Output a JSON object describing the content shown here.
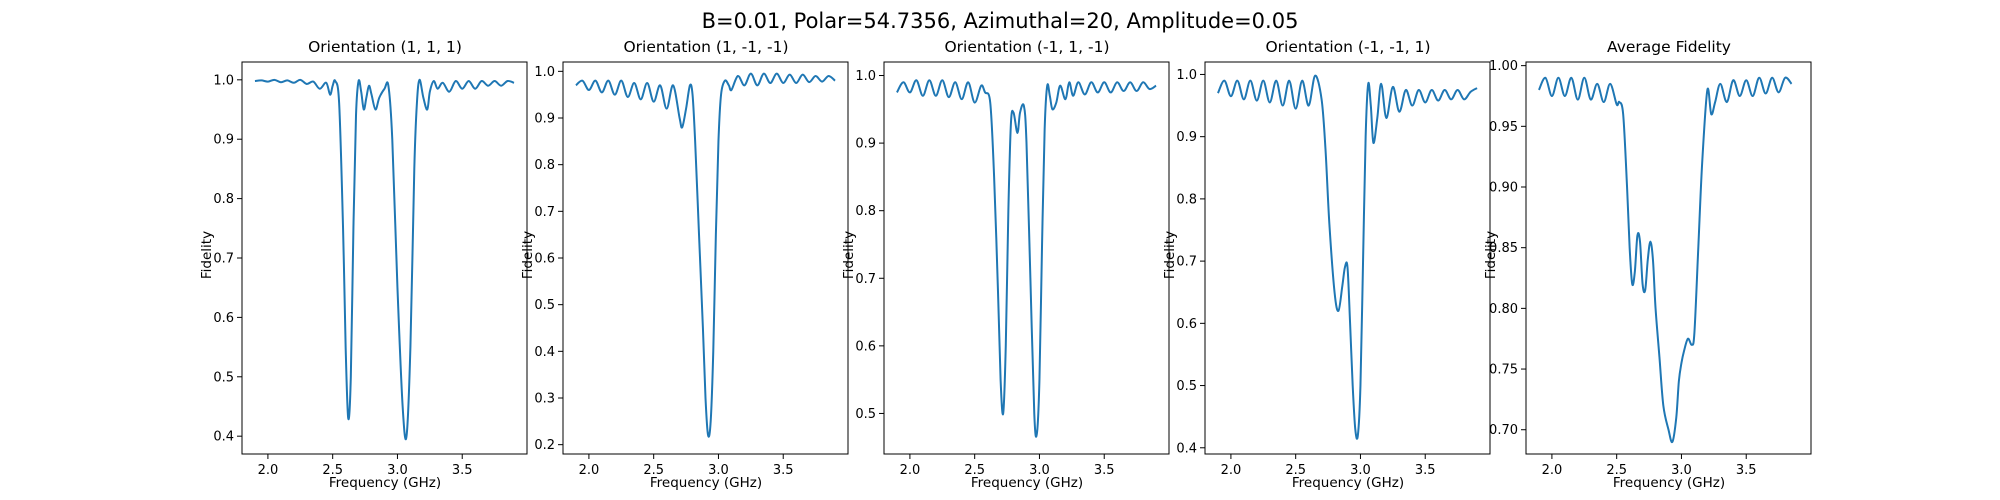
{
  "figure": {
    "title": "B=0.01, Polar=54.7356, Azimuthal=20, Amplitude=0.05",
    "line_color": "#1f77b4"
  },
  "chart_data": [
    {
      "type": "line",
      "title": "Orientation (1, 1, 1)",
      "xlabel": "Frequency (GHz)",
      "ylabel": "Fidelity",
      "xlim": [
        1.8,
        4.0
      ],
      "ylim": [
        0.37,
        1.03
      ],
      "xticks": [
        2.0,
        2.5,
        3.0,
        3.5
      ],
      "xtick_labels": [
        "2.0",
        "2.5",
        "3.0",
        "3.5"
      ],
      "yticks": [
        0.4,
        0.5,
        0.6,
        0.7,
        0.8,
        0.9,
        1.0
      ],
      "ytick_labels": [
        "0.4",
        "0.5",
        "0.6",
        "0.7",
        "0.8",
        "0.9",
        "1.0"
      ],
      "series": [
        {
          "x": [
            1.9,
            1.95,
            2.0,
            2.05,
            2.1,
            2.15,
            2.2,
            2.25,
            2.3,
            2.35,
            2.4,
            2.45,
            2.48,
            2.5,
            2.52,
            2.55,
            2.58,
            2.6,
            2.62,
            2.64,
            2.66,
            2.68,
            2.7,
            2.72,
            2.74,
            2.76,
            2.78,
            2.8,
            2.83,
            2.86,
            2.9,
            2.93,
            2.96,
            3.0,
            3.04,
            3.07,
            3.1,
            3.13,
            3.15,
            3.17,
            3.2,
            3.23,
            3.25,
            3.28,
            3.31,
            3.35,
            3.4,
            3.45,
            3.5,
            3.55,
            3.6,
            3.65,
            3.7,
            3.75,
            3.8,
            3.85,
            3.9
          ],
          "y": [
            0.998,
            0.999,
            0.997,
            1.0,
            0.996,
            0.999,
            0.995,
            1.0,
            0.993,
            0.997,
            0.985,
            0.995,
            0.975,
            0.99,
            0.998,
            0.96,
            0.75,
            0.55,
            0.43,
            0.5,
            0.75,
            0.94,
            0.998,
            0.98,
            0.95,
            0.97,
            0.99,
            0.975,
            0.95,
            0.97,
            0.985,
            0.99,
            0.9,
            0.65,
            0.45,
            0.4,
            0.55,
            0.85,
            0.96,
            1.0,
            0.97,
            0.95,
            0.98,
            0.998,
            0.985,
            0.995,
            0.98,
            0.998,
            0.985,
            0.998,
            0.985,
            0.998,
            0.99,
            0.998,
            0.99,
            0.998,
            0.995
          ]
        }
      ]
    },
    {
      "type": "line",
      "title": "Orientation (1, -1, -1)",
      "xlabel": "Frequency (GHz)",
      "ylabel": "Fidelity",
      "xlim": [
        1.8,
        4.0
      ],
      "ylim": [
        0.18,
        1.02
      ],
      "xticks": [
        2.0,
        2.5,
        3.0,
        3.5
      ],
      "xtick_labels": [
        "2.0",
        "2.5",
        "3.0",
        "3.5"
      ],
      "yticks": [
        0.2,
        0.3,
        0.4,
        0.5,
        0.6,
        0.7,
        0.8,
        0.9,
        1.0
      ],
      "ytick_labels": [
        "0.2",
        "0.3",
        "0.4",
        "0.5",
        "0.6",
        "0.7",
        "0.8",
        "0.9",
        "1.0"
      ],
      "series": [
        {
          "x": [
            1.9,
            1.95,
            2.0,
            2.05,
            2.1,
            2.15,
            2.2,
            2.25,
            2.3,
            2.35,
            2.4,
            2.45,
            2.5,
            2.55,
            2.6,
            2.65,
            2.7,
            2.72,
            2.75,
            2.78,
            2.8,
            2.82,
            2.85,
            2.88,
            2.9,
            2.92,
            2.94,
            2.96,
            2.98,
            3.0,
            3.02,
            3.05,
            3.08,
            3.1,
            3.15,
            3.2,
            3.25,
            3.3,
            3.35,
            3.4,
            3.45,
            3.5,
            3.55,
            3.6,
            3.65,
            3.7,
            3.75,
            3.8,
            3.85,
            3.9
          ],
          "y": [
            0.97,
            0.98,
            0.96,
            0.98,
            0.955,
            0.98,
            0.95,
            0.98,
            0.945,
            0.975,
            0.94,
            0.975,
            0.935,
            0.97,
            0.92,
            0.97,
            0.9,
            0.88,
            0.92,
            0.97,
            0.95,
            0.85,
            0.65,
            0.45,
            0.3,
            0.22,
            0.25,
            0.4,
            0.65,
            0.85,
            0.95,
            0.98,
            0.97,
            0.96,
            0.99,
            0.97,
            0.995,
            0.97,
            0.995,
            0.975,
            0.995,
            0.975,
            0.993,
            0.975,
            0.993,
            0.977,
            0.99,
            0.978,
            0.99,
            0.98
          ]
        }
      ]
    },
    {
      "type": "line",
      "title": "Orientation (-1, 1, -1)",
      "xlabel": "Frequency (GHz)",
      "ylabel": "Fidelity",
      "xlim": [
        1.8,
        4.0
      ],
      "ylim": [
        0.44,
        1.02
      ],
      "xticks": [
        2.0,
        2.5,
        3.0,
        3.5
      ],
      "xtick_labels": [
        "2.0",
        "2.5",
        "3.0",
        "3.5"
      ],
      "yticks": [
        0.5,
        0.6,
        0.7,
        0.8,
        0.9,
        1.0
      ],
      "ytick_labels": [
        "0.5",
        "0.6",
        "0.7",
        "0.8",
        "0.9",
        "1.0"
      ],
      "series": [
        {
          "x": [
            1.9,
            1.95,
            2.0,
            2.05,
            2.1,
            2.15,
            2.2,
            2.25,
            2.3,
            2.35,
            2.4,
            2.45,
            2.5,
            2.55,
            2.58,
            2.62,
            2.65,
            2.68,
            2.7,
            2.72,
            2.74,
            2.76,
            2.78,
            2.8,
            2.83,
            2.85,
            2.88,
            2.9,
            2.93,
            2.96,
            2.98,
            3.0,
            3.02,
            3.04,
            3.06,
            3.08,
            3.1,
            3.13,
            3.16,
            3.2,
            3.23,
            3.26,
            3.3,
            3.35,
            3.4,
            3.45,
            3.5,
            3.55,
            3.6,
            3.65,
            3.7,
            3.75,
            3.8,
            3.85,
            3.9
          ],
          "y": [
            0.975,
            0.99,
            0.975,
            0.993,
            0.97,
            0.993,
            0.97,
            0.993,
            0.968,
            0.99,
            0.965,
            0.99,
            0.96,
            0.985,
            0.975,
            0.96,
            0.85,
            0.68,
            0.55,
            0.5,
            0.6,
            0.8,
            0.93,
            0.945,
            0.915,
            0.945,
            0.955,
            0.9,
            0.7,
            0.5,
            0.47,
            0.55,
            0.75,
            0.92,
            0.985,
            0.97,
            0.95,
            0.96,
            0.985,
            0.965,
            0.99,
            0.97,
            0.99,
            0.972,
            0.99,
            0.975,
            0.99,
            0.975,
            0.99,
            0.977,
            0.99,
            0.977,
            0.99,
            0.98,
            0.985
          ]
        }
      ]
    },
    {
      "type": "line",
      "title": "Orientation (-1, -1, 1)",
      "xlabel": "Frequency (GHz)",
      "ylabel": "Fidelity",
      "xlim": [
        1.8,
        4.0
      ],
      "ylim": [
        0.39,
        1.02
      ],
      "xticks": [
        2.0,
        2.5,
        3.0,
        3.5
      ],
      "xtick_labels": [
        "2.0",
        "2.5",
        "3.0",
        "3.5"
      ],
      "yticks": [
        0.4,
        0.5,
        0.6,
        0.7,
        0.8,
        0.9,
        1.0
      ],
      "ytick_labels": [
        "0.4",
        "0.5",
        "0.6",
        "0.7",
        "0.8",
        "0.9",
        "1.0"
      ],
      "series": [
        {
          "x": [
            1.9,
            1.95,
            2.0,
            2.05,
            2.1,
            2.15,
            2.2,
            2.25,
            2.3,
            2.35,
            2.4,
            2.45,
            2.5,
            2.55,
            2.6,
            2.65,
            2.7,
            2.73,
            2.76,
            2.8,
            2.83,
            2.86,
            2.88,
            2.9,
            2.92,
            2.94,
            2.96,
            2.98,
            3.0,
            3.02,
            3.04,
            3.06,
            3.08,
            3.1,
            3.13,
            3.16,
            3.2,
            3.25,
            3.3,
            3.35,
            3.4,
            3.45,
            3.5,
            3.55,
            3.6,
            3.65,
            3.7,
            3.75,
            3.8,
            3.85,
            3.9
          ],
          "y": [
            0.97,
            0.99,
            0.965,
            0.99,
            0.96,
            0.99,
            0.958,
            0.99,
            0.955,
            0.99,
            0.95,
            0.99,
            0.945,
            0.99,
            0.95,
            0.998,
            0.96,
            0.88,
            0.76,
            0.65,
            0.62,
            0.66,
            0.69,
            0.69,
            0.6,
            0.5,
            0.43,
            0.42,
            0.5,
            0.7,
            0.9,
            0.985,
            0.95,
            0.89,
            0.93,
            0.985,
            0.93,
            0.98,
            0.94,
            0.975,
            0.95,
            0.975,
            0.955,
            0.975,
            0.958,
            0.975,
            0.96,
            0.975,
            0.96,
            0.972,
            0.978
          ]
        }
      ]
    },
    {
      "type": "line",
      "title": "Average Fidelity",
      "xlabel": "Frequency (GHz)",
      "ylabel": "Fidelity",
      "xlim": [
        1.8,
        4.0
      ],
      "ylim": [
        0.68,
        1.003
      ],
      "xticks": [
        2.0,
        2.5,
        3.0,
        3.5
      ],
      "xtick_labels": [
        "2.0",
        "2.5",
        "3.0",
        "3.5"
      ],
      "yticks": [
        0.7,
        0.75,
        0.8,
        0.85,
        0.9,
        0.95,
        1.0
      ],
      "ytick_labels": [
        "0.70",
        "0.75",
        "0.80",
        "0.85",
        "0.90",
        "0.95",
        "1.00"
      ],
      "series": [
        {
          "x": [
            1.9,
            1.95,
            2.0,
            2.05,
            2.1,
            2.15,
            2.2,
            2.25,
            2.3,
            2.35,
            2.4,
            2.45,
            2.5,
            2.52,
            2.55,
            2.58,
            2.6,
            2.62,
            2.64,
            2.66,
            2.68,
            2.7,
            2.72,
            2.74,
            2.76,
            2.78,
            2.8,
            2.83,
            2.86,
            2.9,
            2.93,
            2.96,
            2.98,
            3.0,
            3.02,
            3.05,
            3.08,
            3.1,
            3.13,
            3.16,
            3.2,
            3.23,
            3.26,
            3.3,
            3.35,
            3.4,
            3.45,
            3.5,
            3.55,
            3.6,
            3.65,
            3.7,
            3.75,
            3.8,
            3.85
          ],
          "y": [
            0.98,
            0.99,
            0.975,
            0.99,
            0.975,
            0.99,
            0.972,
            0.99,
            0.972,
            0.985,
            0.97,
            0.985,
            0.968,
            0.97,
            0.96,
            0.9,
            0.85,
            0.82,
            0.83,
            0.86,
            0.855,
            0.82,
            0.815,
            0.84,
            0.855,
            0.84,
            0.8,
            0.76,
            0.72,
            0.7,
            0.69,
            0.71,
            0.74,
            0.755,
            0.765,
            0.775,
            0.77,
            0.78,
            0.85,
            0.92,
            0.98,
            0.96,
            0.97,
            0.985,
            0.97,
            0.988,
            0.975,
            0.988,
            0.975,
            0.99,
            0.977,
            0.99,
            0.978,
            0.99,
            0.985
          ]
        }
      ]
    }
  ]
}
